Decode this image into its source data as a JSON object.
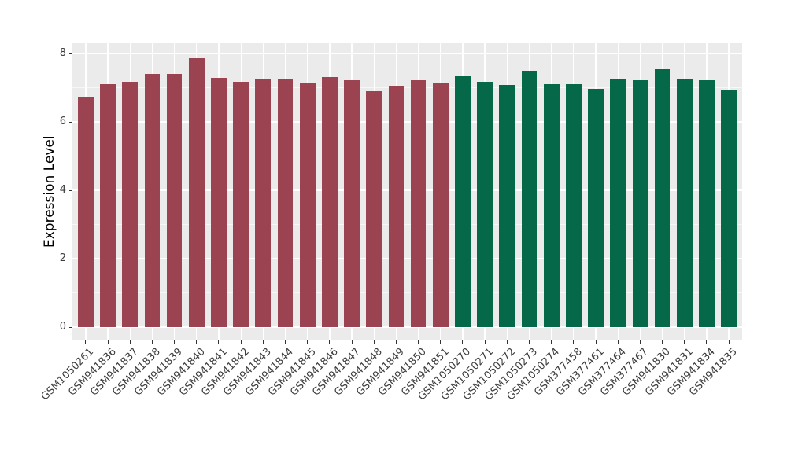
{
  "chart_data": {
    "type": "bar",
    "title": "",
    "xlabel": "",
    "ylabel": "Expression Level",
    "categories": [
      "GSM1050261",
      "GSM941836",
      "GSM941837",
      "GSM941838",
      "GSM941839",
      "GSM941840",
      "GSM941841",
      "GSM941842",
      "GSM941843",
      "GSM941844",
      "GSM941845",
      "GSM941846",
      "GSM941847",
      "GSM941848",
      "GSM941849",
      "GSM941850",
      "GSM941851",
      "GSM1050270",
      "GSM1050271",
      "GSM1050272",
      "GSM1050273",
      "GSM1050274",
      "GSM377458",
      "GSM377461",
      "GSM377464",
      "GSM377467",
      "GSM941830",
      "GSM941831",
      "GSM941834",
      "GSM941835"
    ],
    "values": [
      6.73,
      7.1,
      7.17,
      7.4,
      7.4,
      7.87,
      7.29,
      7.17,
      7.25,
      7.25,
      7.16,
      7.31,
      7.21,
      6.89,
      7.07,
      7.23,
      7.14,
      7.33,
      7.17,
      7.08,
      7.5,
      7.11,
      7.1,
      6.97,
      7.26,
      7.22,
      7.54,
      7.27,
      7.23,
      6.93
    ],
    "bar_groups": [
      0,
      0,
      0,
      0,
      0,
      0,
      0,
      0,
      0,
      0,
      0,
      0,
      0,
      0,
      0,
      0,
      0,
      1,
      1,
      1,
      1,
      1,
      1,
      1,
      1,
      1,
      1,
      1,
      1,
      1
    ],
    "group_colors": [
      "#9B4350",
      "#046849"
    ],
    "panel_color": "#EBEBEB",
    "grid_color": "#FFFFFF",
    "axis_text_color": "#3d3d3d",
    "axis_title_color": "#000000",
    "tick_mark_color": "#333333",
    "yticks": [
      0,
      2,
      4,
      6,
      8
    ],
    "yticks_minor": [
      1,
      3,
      5,
      7
    ],
    "ylim": [
      0,
      8
    ],
    "y_range": [
      -0.39,
      8.3
    ],
    "bar_width_frac": 0.7,
    "x_tick_angle": 45,
    "grid": "on",
    "legend": "none"
  }
}
